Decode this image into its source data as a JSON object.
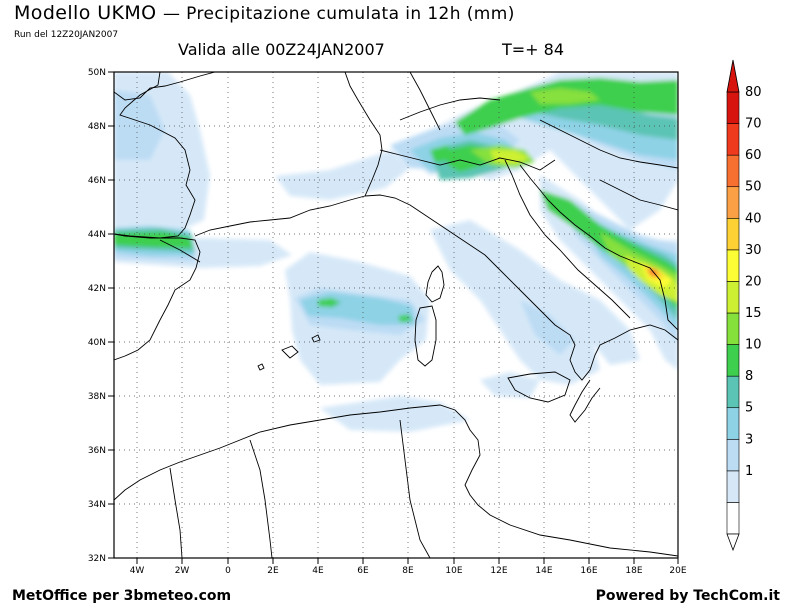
{
  "header": {
    "title": "Modello UKMO",
    "subtitle": "— Precipitazione cumulata in 12h (mm)",
    "run": "Run del 12Z20JAN2007",
    "valid": "Valida alle 00Z24JAN2007",
    "step": "T=+ 84"
  },
  "map": {
    "lat_labels": [
      "50N",
      "48N",
      "46N",
      "44N",
      "42N",
      "40N",
      "38N",
      "36N",
      "34N",
      "32N"
    ],
    "lon_labels": [
      "4W",
      "2W",
      "0",
      "2E",
      "4E",
      "6E",
      "8E",
      "10E",
      "12E",
      "14E",
      "16E",
      "18E",
      "20E"
    ],
    "grid": true
  },
  "legend": {
    "levels": [
      "80",
      "70",
      "60",
      "50",
      "40",
      "30",
      "20",
      "15",
      "10",
      "8",
      "5",
      "3",
      "1"
    ],
    "colors": [
      "#ffffff",
      "#d6e8f8",
      "#bcdcf4",
      "#8ed2e6",
      "#5cc4b4",
      "#3ecf4e",
      "#86e03c",
      "#cdf033",
      "#fdfd35",
      "#fdd133",
      "#fba045",
      "#f77030",
      "#f03a1e",
      "#d8140e"
    ]
  },
  "footer": {
    "left": "MetOffice per 3bmeteo.com",
    "right": "Powered by TechCom.it"
  }
}
